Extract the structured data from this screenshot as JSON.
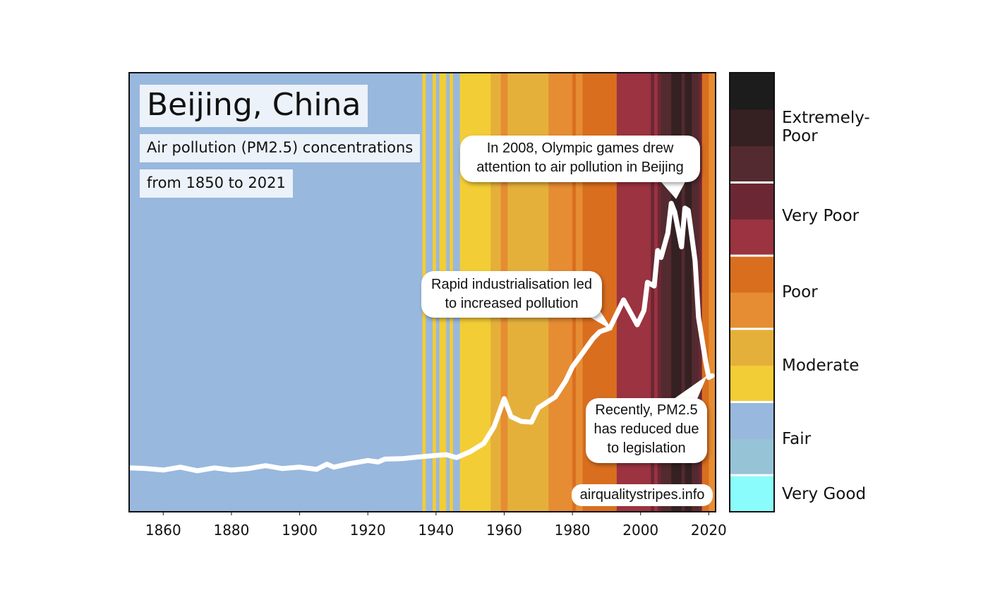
{
  "chart_data": {
    "type": "line",
    "title": "Beijing, China",
    "subtitle_lines": [
      "Air pollution (PM2.5) concentrations",
      "from 1850 to 2021"
    ],
    "xlabel": "",
    "ylabel": "",
    "xlim": [
      1850,
      2022
    ],
    "x_ticks": [
      1860,
      1880,
      1900,
      1920,
      1940,
      1960,
      1980,
      2000,
      2020
    ],
    "y_scale_note_units": "colorbar level (0 = bottom of Very Good, 12 = top of Extremely-Poor)",
    "ylim": [
      0,
      12
    ],
    "grid": false,
    "line_color": "#ffffff",
    "series": [
      {
        "x": [
          1850,
          1855,
          1860,
          1865,
          1870,
          1875,
          1880,
          1885,
          1890,
          1895,
          1900,
          1905,
          1908,
          1910,
          1915,
          1920,
          1923,
          1925,
          1930,
          1935,
          1940,
          1943,
          1946,
          1950,
          1954,
          1957,
          1960,
          1962,
          1965,
          1968,
          1970,
          1975,
          1978,
          1980,
          1983,
          1986,
          1988,
          1991,
          1995,
          1999,
          2001,
          2002,
          2004,
          2005,
          2006,
          2008,
          2009,
          2010,
          2012,
          2013,
          2014,
          2016,
          2017,
          2019,
          2020,
          2021
        ],
        "y": [
          1.2,
          1.18,
          1.14,
          1.22,
          1.12,
          1.2,
          1.14,
          1.18,
          1.26,
          1.18,
          1.22,
          1.16,
          1.3,
          1.22,
          1.32,
          1.4,
          1.36,
          1.44,
          1.45,
          1.5,
          1.54,
          1.56,
          1.48,
          1.64,
          1.87,
          2.32,
          3.09,
          2.6,
          2.47,
          2.45,
          2.84,
          3.14,
          3.57,
          3.96,
          4.34,
          4.73,
          4.92,
          5.02,
          5.79,
          5.11,
          5.5,
          6.27,
          6.17,
          7.14,
          6.95,
          7.62,
          8.43,
          8.2,
          7.24,
          8.3,
          8.24,
          6.85,
          5.31,
          4.15,
          3.67,
          3.72
        ]
      }
    ],
    "colorbar": {
      "bands_bottom_to_top": [
        "#8bfcfc",
        "#97c3d6",
        "#98b8de",
        "#f3cd35",
        "#e5b03a",
        "#e68c33",
        "#d96e1f",
        "#9b3340",
        "#6b2834",
        "#532a2f",
        "#352022",
        "#1c1c1c"
      ],
      "categories": [
        {
          "label": "Very Good",
          "levels": [
            0
          ]
        },
        {
          "label": "Fair",
          "levels": [
            1,
            2
          ]
        },
        {
          "label": "Moderate",
          "levels": [
            3,
            4
          ]
        },
        {
          "label": "Poor",
          "levels": [
            5,
            6
          ]
        },
        {
          "label": "Very Poor",
          "levels": [
            7,
            8
          ]
        },
        {
          "label": "Extremely-Poor",
          "levels": [
            9,
            10,
            11
          ]
        }
      ]
    },
    "stripes": [
      {
        "from": 1850,
        "to": 1935,
        "level": 2
      },
      {
        "from": 1936,
        "to": 1936,
        "level": 3
      },
      {
        "from": 1937,
        "to": 1938,
        "level": 2
      },
      {
        "from": 1939,
        "to": 1939,
        "level": 3
      },
      {
        "from": 1940,
        "to": 1940,
        "level": 2
      },
      {
        "from": 1941,
        "to": 1942,
        "level": 3
      },
      {
        "from": 1943,
        "to": 1943,
        "level": 2
      },
      {
        "from": 1944,
        "to": 1944,
        "level": 3
      },
      {
        "from": 1945,
        "to": 1946,
        "level": 2
      },
      {
        "from": 1947,
        "to": 1955,
        "level": 3
      },
      {
        "from": 1956,
        "to": 1958,
        "level": 4
      },
      {
        "from": 1959,
        "to": 1960,
        "level": 5
      },
      {
        "from": 1961,
        "to": 1972,
        "level": 4
      },
      {
        "from": 1973,
        "to": 1979,
        "level": 5
      },
      {
        "from": 1980,
        "to": 1980,
        "level": 6
      },
      {
        "from": 1981,
        "to": 1982,
        "level": 5
      },
      {
        "from": 1983,
        "to": 1992,
        "level": 6
      },
      {
        "from": 1993,
        "to": 2002,
        "level": 7
      },
      {
        "from": 2003,
        "to": 2003,
        "level": 8
      },
      {
        "from": 2004,
        "to": 2004,
        "level": 7
      },
      {
        "from": 2005,
        "to": 2005,
        "level": 8
      },
      {
        "from": 2006,
        "to": 2008,
        "level": 9
      },
      {
        "from": 2009,
        "to": 2011,
        "level": 10
      },
      {
        "from": 2012,
        "to": 2012,
        "level": 9
      },
      {
        "from": 2013,
        "to": 2014,
        "level": 10
      },
      {
        "from": 2015,
        "to": 2016,
        "level": 9
      },
      {
        "from": 2017,
        "to": 2017,
        "level": 8
      },
      {
        "from": 2018,
        "to": 2019,
        "level": 6
      },
      {
        "from": 2020,
        "to": 2021,
        "level": 5
      }
    ],
    "annotations": {
      "olympics": [
        "In 2008, Olympic games drew",
        "attention to air pollution in Beijing"
      ],
      "industrialisation": [
        "Rapid industrialisation led",
        "to increased pollution"
      ],
      "recent": [
        "Recently, PM2.5",
        "has reduced due",
        "to legislation"
      ]
    },
    "source": "airqualitystripes.info"
  }
}
